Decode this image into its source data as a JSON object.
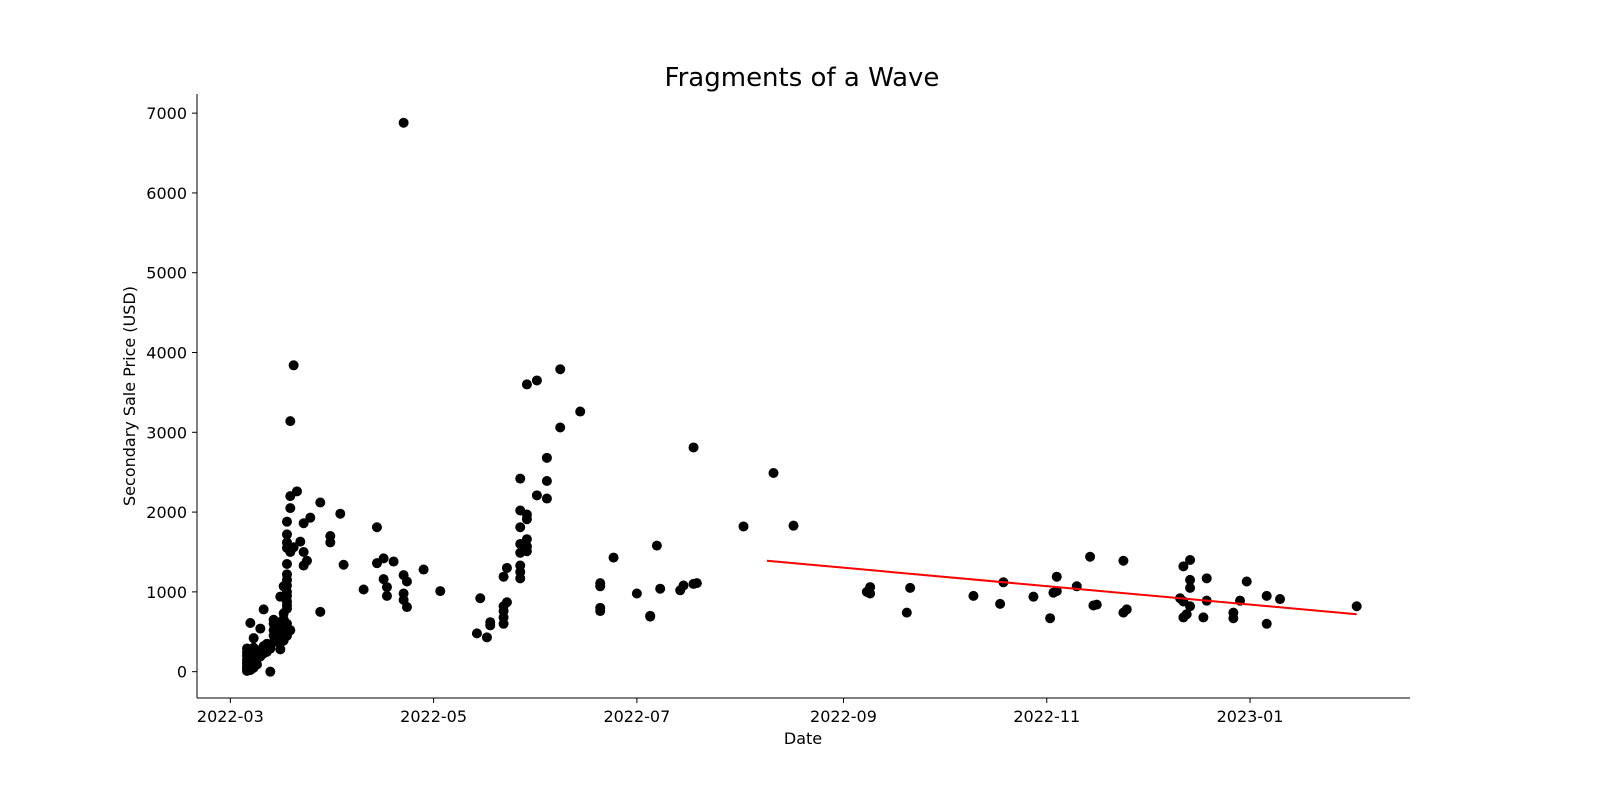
{
  "chart_data": {
    "type": "scatter",
    "title": "Fragments of a Wave",
    "xlabel": "Date",
    "ylabel": "Secondary Sale Price (USD)",
    "xlim": [
      "2022-02-19",
      "2023-02-18"
    ],
    "ylim": [
      -330,
      7240
    ],
    "x_ticks": [
      "2022-03",
      "2022-05",
      "2022-07",
      "2022-09",
      "2022-11",
      "2023-01"
    ],
    "y_ticks": [
      0,
      1000,
      2000,
      3000,
      4000,
      5000,
      6000,
      7000
    ],
    "grid": false,
    "point_color": "#000000",
    "trend_color": "#ff0000",
    "points": [
      [
        "2022-03-06",
        10
      ],
      [
        "2022-03-06",
        40
      ],
      [
        "2022-03-06",
        70
      ],
      [
        "2022-03-06",
        110
      ],
      [
        "2022-03-06",
        150
      ],
      [
        "2022-03-06",
        200
      ],
      [
        "2022-03-06",
        240
      ],
      [
        "2022-03-06",
        290
      ],
      [
        "2022-03-07",
        20
      ],
      [
        "2022-03-07",
        60
      ],
      [
        "2022-03-07",
        100
      ],
      [
        "2022-03-07",
        130
      ],
      [
        "2022-03-07",
        180
      ],
      [
        "2022-03-07",
        230
      ],
      [
        "2022-03-07",
        610
      ],
      [
        "2022-03-08",
        50
      ],
      [
        "2022-03-08",
        120
      ],
      [
        "2022-03-08",
        170
      ],
      [
        "2022-03-08",
        250
      ],
      [
        "2022-03-08",
        300
      ],
      [
        "2022-03-08",
        420
      ],
      [
        "2022-03-09",
        90
      ],
      [
        "2022-03-09",
        160
      ],
      [
        "2022-03-09",
        210
      ],
      [
        "2022-03-09",
        270
      ],
      [
        "2022-03-10",
        190
      ],
      [
        "2022-03-10",
        260
      ],
      [
        "2022-03-10",
        540
      ],
      [
        "2022-03-11",
        230
      ],
      [
        "2022-03-11",
        320
      ],
      [
        "2022-03-11",
        780
      ],
      [
        "2022-03-12",
        250
      ],
      [
        "2022-03-12",
        350
      ],
      [
        "2022-03-13",
        0
      ],
      [
        "2022-03-13",
        290
      ],
      [
        "2022-03-14",
        370
      ],
      [
        "2022-03-14",
        450
      ],
      [
        "2022-03-14",
        520
      ],
      [
        "2022-03-14",
        600
      ],
      [
        "2022-03-14",
        650
      ],
      [
        "2022-03-15",
        400
      ],
      [
        "2022-03-15",
        480
      ],
      [
        "2022-03-15",
        560
      ],
      [
        "2022-03-15",
        620
      ],
      [
        "2022-03-16",
        280
      ],
      [
        "2022-03-16",
        360
      ],
      [
        "2022-03-16",
        470
      ],
      [
        "2022-03-16",
        580
      ],
      [
        "2022-03-16",
        940
      ],
      [
        "2022-03-17",
        390
      ],
      [
        "2022-03-17",
        500
      ],
      [
        "2022-03-17",
        660
      ],
      [
        "2022-03-17",
        730
      ],
      [
        "2022-03-17",
        1070
      ],
      [
        "2022-03-18",
        450
      ],
      [
        "2022-03-18",
        530
      ],
      [
        "2022-03-18",
        600
      ],
      [
        "2022-03-18",
        790
      ],
      [
        "2022-03-18",
        830
      ],
      [
        "2022-03-18",
        880
      ],
      [
        "2022-03-18",
        950
      ],
      [
        "2022-03-18",
        1000
      ],
      [
        "2022-03-18",
        1080
      ],
      [
        "2022-03-18",
        1150
      ],
      [
        "2022-03-18",
        1220
      ],
      [
        "2022-03-18",
        1350
      ],
      [
        "2022-03-18",
        1550
      ],
      [
        "2022-03-18",
        1620
      ],
      [
        "2022-03-18",
        1720
      ],
      [
        "2022-03-18",
        1880
      ],
      [
        "2022-03-19",
        520
      ],
      [
        "2022-03-19",
        1500
      ],
      [
        "2022-03-19",
        2050
      ],
      [
        "2022-03-19",
        2200
      ],
      [
        "2022-03-19",
        3140
      ],
      [
        "2022-03-20",
        1560
      ],
      [
        "2022-03-20",
        3840
      ],
      [
        "2022-03-21",
        2260
      ],
      [
        "2022-03-22",
        1630
      ],
      [
        "2022-03-23",
        1330
      ],
      [
        "2022-03-23",
        1500
      ],
      [
        "2022-03-23",
        1860
      ],
      [
        "2022-03-24",
        1390
      ],
      [
        "2022-03-25",
        1930
      ],
      [
        "2022-03-28",
        750
      ],
      [
        "2022-03-28",
        2120
      ],
      [
        "2022-03-31",
        1620
      ],
      [
        "2022-03-31",
        1700
      ],
      [
        "2022-04-03",
        1980
      ],
      [
        "2022-04-04",
        1340
      ],
      [
        "2022-04-10",
        1030
      ],
      [
        "2022-04-14",
        1360
      ],
      [
        "2022-04-14",
        1810
      ],
      [
        "2022-04-16",
        1160
      ],
      [
        "2022-04-16",
        1420
      ],
      [
        "2022-04-17",
        950
      ],
      [
        "2022-04-17",
        1060
      ],
      [
        "2022-04-19",
        1380
      ],
      [
        "2022-04-22",
        6880
      ],
      [
        "2022-04-22",
        900
      ],
      [
        "2022-04-22",
        980
      ],
      [
        "2022-04-22",
        1210
      ],
      [
        "2022-04-23",
        810
      ],
      [
        "2022-04-23",
        1130
      ],
      [
        "2022-04-28",
        1280
      ],
      [
        "2022-05-03",
        1010
      ],
      [
        "2022-05-14",
        480
      ],
      [
        "2022-05-15",
        920
      ],
      [
        "2022-05-17",
        430
      ],
      [
        "2022-05-18",
        580
      ],
      [
        "2022-05-18",
        620
      ],
      [
        "2022-05-22",
        600
      ],
      [
        "2022-05-22",
        680
      ],
      [
        "2022-05-22",
        760
      ],
      [
        "2022-05-22",
        820
      ],
      [
        "2022-05-22",
        1190
      ],
      [
        "2022-05-23",
        870
      ],
      [
        "2022-05-23",
        1300
      ],
      [
        "2022-05-27",
        1170
      ],
      [
        "2022-05-27",
        1250
      ],
      [
        "2022-05-27",
        1330
      ],
      [
        "2022-05-27",
        1490
      ],
      [
        "2022-05-27",
        1600
      ],
      [
        "2022-05-27",
        1810
      ],
      [
        "2022-05-27",
        2020
      ],
      [
        "2022-05-27",
        2420
      ],
      [
        "2022-05-29",
        1510
      ],
      [
        "2022-05-29",
        1570
      ],
      [
        "2022-05-29",
        1660
      ],
      [
        "2022-05-29",
        1910
      ],
      [
        "2022-05-29",
        1970
      ],
      [
        "2022-05-29",
        3600
      ],
      [
        "2022-06-01",
        2210
      ],
      [
        "2022-06-01",
        3650
      ],
      [
        "2022-06-04",
        2170
      ],
      [
        "2022-06-04",
        2390
      ],
      [
        "2022-06-04",
        2680
      ],
      [
        "2022-06-08",
        3060
      ],
      [
        "2022-06-08",
        3790
      ],
      [
        "2022-06-14",
        3260
      ],
      [
        "2022-06-20",
        760
      ],
      [
        "2022-06-20",
        800
      ],
      [
        "2022-06-20",
        1070
      ],
      [
        "2022-06-20",
        1110
      ],
      [
        "2022-06-24",
        1430
      ],
      [
        "2022-07-01",
        980
      ],
      [
        "2022-07-05",
        690
      ],
      [
        "2022-07-05",
        700
      ],
      [
        "2022-07-07",
        1580
      ],
      [
        "2022-07-08",
        1040
      ],
      [
        "2022-07-14",
        1020
      ],
      [
        "2022-07-15",
        1080
      ],
      [
        "2022-07-18",
        1100
      ],
      [
        "2022-07-18",
        2810
      ],
      [
        "2022-07-19",
        1110
      ],
      [
        "2022-08-02",
        1820
      ],
      [
        "2022-08-11",
        2490
      ],
      [
        "2022-08-17",
        1830
      ],
      [
        "2022-09-08",
        1000
      ],
      [
        "2022-09-09",
        980
      ],
      [
        "2022-09-09",
        1060
      ],
      [
        "2022-09-20",
        740
      ],
      [
        "2022-09-21",
        1050
      ],
      [
        "2022-10-10",
        950
      ],
      [
        "2022-10-18",
        850
      ],
      [
        "2022-10-19",
        1120
      ],
      [
        "2022-10-28",
        940
      ],
      [
        "2022-11-02",
        670
      ],
      [
        "2022-11-03",
        990
      ],
      [
        "2022-11-04",
        1190
      ],
      [
        "2022-11-04",
        1010
      ],
      [
        "2022-11-10",
        1070
      ],
      [
        "2022-11-14",
        1440
      ],
      [
        "2022-11-15",
        830
      ],
      [
        "2022-11-16",
        840
      ],
      [
        "2022-11-24",
        740
      ],
      [
        "2022-11-24",
        1390
      ],
      [
        "2022-11-25",
        780
      ],
      [
        "2022-12-11",
        920
      ],
      [
        "2022-12-12",
        680
      ],
      [
        "2022-12-12",
        880
      ],
      [
        "2022-12-12",
        1320
      ],
      [
        "2022-12-13",
        720
      ],
      [
        "2022-12-14",
        820
      ],
      [
        "2022-12-14",
        1050
      ],
      [
        "2022-12-14",
        1150
      ],
      [
        "2022-12-14",
        1400
      ],
      [
        "2022-12-18",
        680
      ],
      [
        "2022-12-19",
        890
      ],
      [
        "2022-12-19",
        1170
      ],
      [
        "2022-12-27",
        670
      ],
      [
        "2022-12-27",
        740
      ],
      [
        "2022-12-29",
        890
      ],
      [
        "2022-12-31",
        1130
      ],
      [
        "2023-01-06",
        600
      ],
      [
        "2023-01-06",
        950
      ],
      [
        "2023-01-10",
        910
      ],
      [
        "2023-02-02",
        820
      ]
    ],
    "trend_line": {
      "start": [
        "2022-08-09",
        1390
      ],
      "end": [
        "2023-02-02",
        720
      ]
    }
  }
}
